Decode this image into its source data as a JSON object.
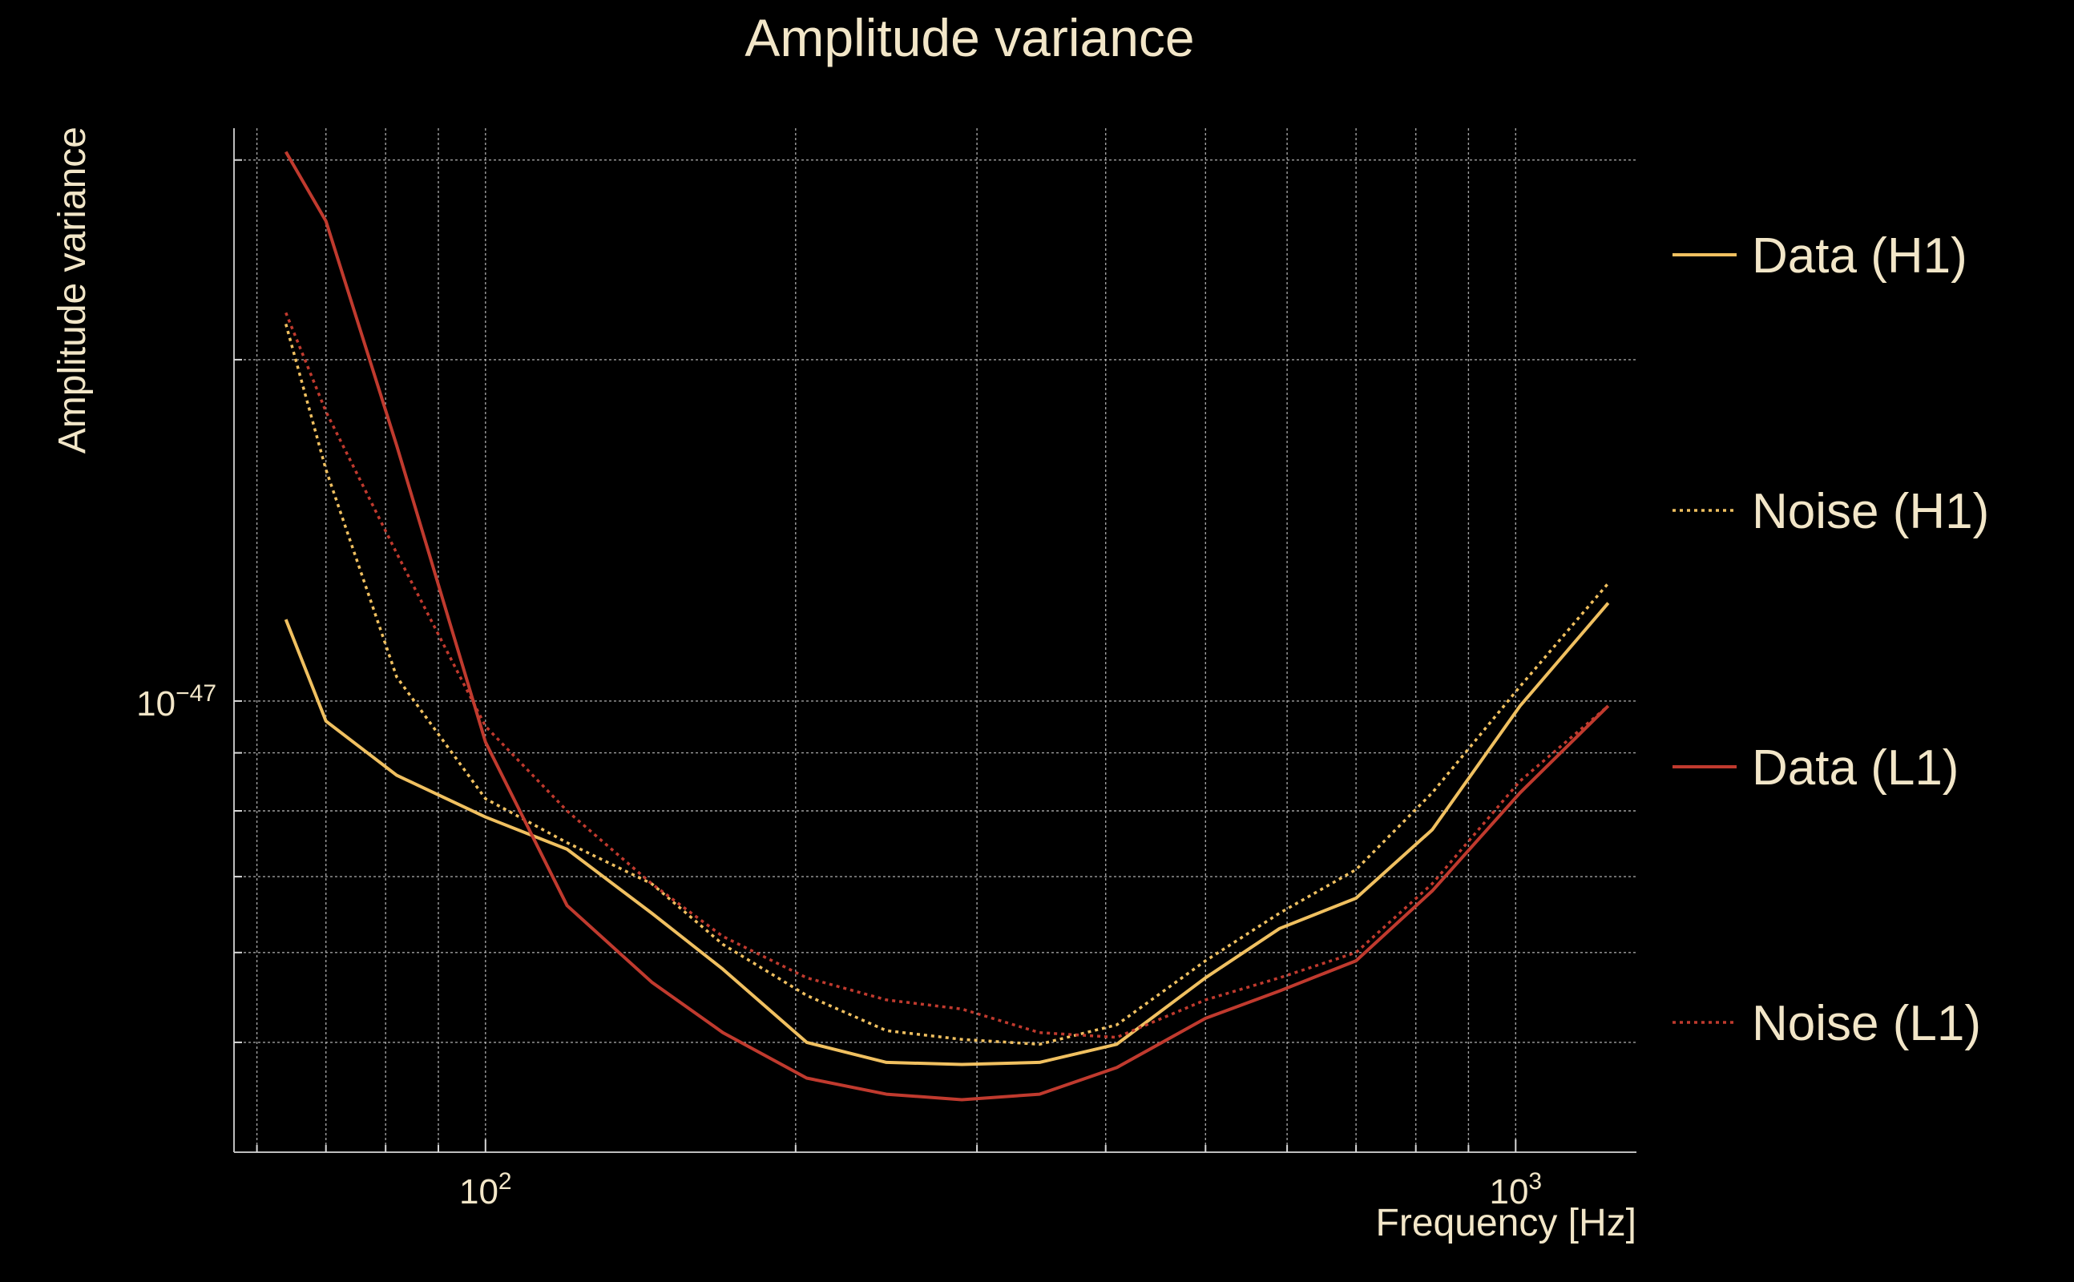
{
  "chart_data": {
    "type": "line",
    "title": "Amplitude variance",
    "xlabel": "Frequency [Hz]",
    "ylabel": "Amplitude variance",
    "xscale": "log",
    "yscale": "log",
    "xlim": [
      57,
      1310
    ],
    "ylim": [
      4e-48,
      3.2e-47
    ],
    "x_tick_labels": [
      {
        "base": "10",
        "exp": "2",
        "value": 100
      },
      {
        "base": "10",
        "exp": "3",
        "value": 1000
      }
    ],
    "y_tick_labels": [
      {
        "base": "10",
        "exp": "−47",
        "value": 1e-47
      }
    ],
    "grid": true,
    "legend_position": "right",
    "x": [
      64,
      70,
      82,
      100,
      120,
      145,
      170,
      205,
      245,
      290,
      345,
      410,
      500,
      590,
      700,
      830,
      1010,
      1230
    ],
    "series": [
      {
        "name": "Data (H1)",
        "color": "#f0c060",
        "style": "solid",
        "values": [
          1.18e-47,
          9.6e-48,
          8.6e-48,
          7.9e-48,
          7.4e-48,
          6.5e-48,
          5.8e-48,
          5e-48,
          4.8e-48,
          4.78e-48,
          4.8e-48,
          4.98e-48,
          5.7e-48,
          6.3e-48,
          6.7e-48,
          7.7e-48,
          9.9e-48,
          1.22e-47
        ]
      },
      {
        "name": "Noise (H1)",
        "color": "#f0c060",
        "style": "dotted",
        "values": [
          2.15e-47,
          1.6e-47,
          1.05e-47,
          8.2e-48,
          7.5e-48,
          6.9e-48,
          6.1e-48,
          5.5e-48,
          5.12e-48,
          5.03e-48,
          4.98e-48,
          5.18e-48,
          5.9e-48,
          6.5e-48,
          7.1e-48,
          8.3e-48,
          1.03e-47,
          1.27e-47
        ]
      },
      {
        "name": "Data (L1)",
        "color": "#c03a2e",
        "style": "solid",
        "values": [
          3.05e-47,
          2.65e-47,
          1.68e-47,
          9.2e-48,
          6.6e-48,
          5.65e-48,
          5.1e-48,
          4.65e-48,
          4.5e-48,
          4.45e-48,
          4.5e-48,
          4.75e-48,
          5.25e-48,
          5.55e-48,
          5.9e-48,
          6.8e-48,
          8.3e-48,
          9.9e-48
        ]
      },
      {
        "name": "Noise (L1)",
        "color": "#c03a2e",
        "style": "dotted",
        "values": [
          2.2e-47,
          1.8e-47,
          1.35e-47,
          9.5e-48,
          8e-48,
          6.9e-48,
          6.2e-48,
          5.7e-48,
          5.45e-48,
          5.35e-48,
          5.1e-48,
          5.05e-48,
          5.45e-48,
          5.7e-48,
          6e-48,
          6.9e-48,
          8.5e-48,
          9.9e-48
        ]
      }
    ]
  }
}
